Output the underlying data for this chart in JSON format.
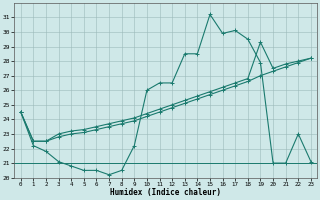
{
  "xlabel": "Humidex (Indice chaleur)",
  "bg_color": "#cfe8e8",
  "line_color": "#1a7a6e",
  "xlim": [
    -0.5,
    23.5
  ],
  "ylim": [
    20,
    32
  ],
  "yticks": [
    20,
    21,
    22,
    23,
    24,
    25,
    26,
    27,
    28,
    29,
    30,
    31
  ],
  "xticks": [
    0,
    1,
    2,
    3,
    4,
    5,
    6,
    7,
    8,
    9,
    10,
    11,
    12,
    13,
    14,
    15,
    16,
    17,
    18,
    19,
    20,
    21,
    22,
    23
  ],
  "line1_x": [
    0,
    1,
    2,
    3,
    4,
    5,
    6,
    7,
    8,
    9,
    10,
    11,
    12,
    13,
    14,
    15,
    16,
    17,
    18,
    19,
    20,
    21,
    22,
    23
  ],
  "line1_y": [
    24.5,
    22.2,
    21.8,
    21.1,
    20.8,
    20.5,
    20.5,
    20.2,
    20.5,
    22.2,
    26.0,
    26.5,
    26.5,
    28.5,
    28.5,
    31.2,
    29.9,
    30.1,
    29.5,
    27.9,
    21.0,
    21.0,
    23.0,
    21.1
  ],
  "line2_x": [
    0,
    1,
    2,
    3,
    4,
    5,
    6,
    7,
    8,
    9,
    10,
    11,
    12,
    13,
    14,
    15,
    16,
    17,
    18,
    19,
    20,
    21,
    22,
    23
  ],
  "line2_y": [
    24.5,
    22.5,
    22.5,
    23.0,
    23.2,
    23.3,
    23.5,
    23.7,
    23.9,
    24.1,
    24.4,
    24.7,
    25.0,
    25.3,
    25.6,
    25.9,
    26.2,
    26.5,
    26.8,
    29.3,
    27.5,
    27.8,
    28.0,
    28.2
  ],
  "line3_x": [
    0,
    1,
    2,
    3,
    4,
    5,
    6,
    7,
    8,
    9,
    10,
    11,
    12,
    13,
    14,
    15,
    16,
    17,
    18,
    19,
    20,
    21,
    22,
    23
  ],
  "line3_y": [
    24.5,
    22.5,
    22.5,
    22.8,
    23.0,
    23.1,
    23.3,
    23.5,
    23.7,
    23.9,
    24.2,
    24.5,
    24.8,
    25.1,
    25.4,
    25.7,
    26.0,
    26.3,
    26.6,
    27.0,
    27.3,
    27.6,
    27.9,
    28.2
  ],
  "hline_y": 21.0,
  "marker": "+"
}
